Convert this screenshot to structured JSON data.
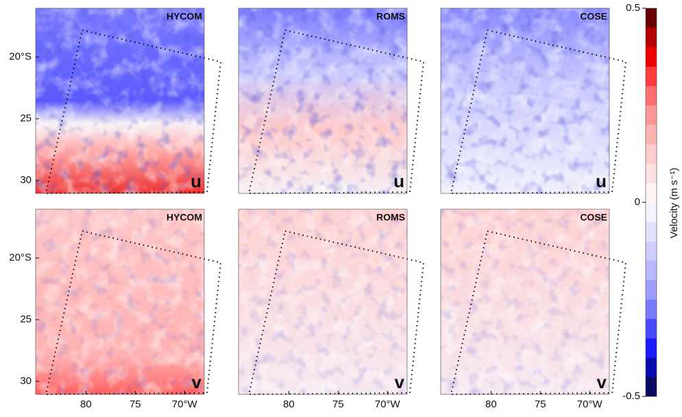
{
  "chart_data": [
    {
      "type": "heatmap",
      "title": "HYCOM",
      "annotation": "u",
      "xlim": [
        85.1,
        68
      ],
      "ylim": [
        31.05,
        16.05
      ],
      "yticks": [
        {
          "value": 20,
          "label": "20°S"
        },
        25,
        30
      ]
    },
    {
      "type": "heatmap",
      "title": "ROMS",
      "annotation": "u",
      "xlim": [
        85.1,
        68
      ],
      "ylim": [
        31.05,
        16.05
      ]
    },
    {
      "type": "heatmap",
      "title": "COSE",
      "annotation": "u",
      "xlim": [
        85.1,
        68
      ],
      "ylim": [
        31.05,
        16.05
      ]
    },
    {
      "type": "heatmap",
      "title": "HYCOM",
      "annotation": "v",
      "xlim": [
        85.1,
        68
      ],
      "ylim": [
        31.05,
        16.05
      ],
      "yticks": [
        {
          "value": 20,
          "label": "20°S"
        },
        25,
        30
      ],
      "xticks": [
        80,
        75,
        {
          "value": 70,
          "label": "70°W"
        }
      ]
    },
    {
      "type": "heatmap",
      "title": "ROMS",
      "annotation": "v",
      "xlim": [
        85.1,
        68
      ],
      "ylim": [
        31.05,
        16.05
      ],
      "xticks": [
        80,
        75,
        {
          "value": 70,
          "label": "70°W"
        }
      ]
    },
    {
      "type": "heatmap",
      "title": "COSE",
      "annotation": "v",
      "xlim": [
        85.1,
        68
      ],
      "ylim": [
        31.05,
        16.05
      ],
      "xticks": [
        80,
        75,
        {
          "value": 70,
          "label": "70°W"
        }
      ]
    }
  ],
  "colorbar": {
    "label": "Velocity (m s⁻¹)",
    "lim": [
      -0.5,
      0.5
    ],
    "ticks": [
      -0.5,
      0,
      0.5
    ],
    "colors": [
      "#0a0a60",
      "#0b0bb0",
      "#1a1aff",
      "#4a4aff",
      "#7a7aff",
      "#9d9dff",
      "#b8b8ff",
      "#cfcfff",
      "#e2e2ff",
      "#f3f3ff",
      "#fff3f3",
      "#ffe0e0",
      "#ffcccc",
      "#ffb4b4",
      "#ff9696",
      "#ff7070",
      "#ff3c3c",
      "#ee0000",
      "#b40000",
      "#6a0000"
    ]
  }
}
